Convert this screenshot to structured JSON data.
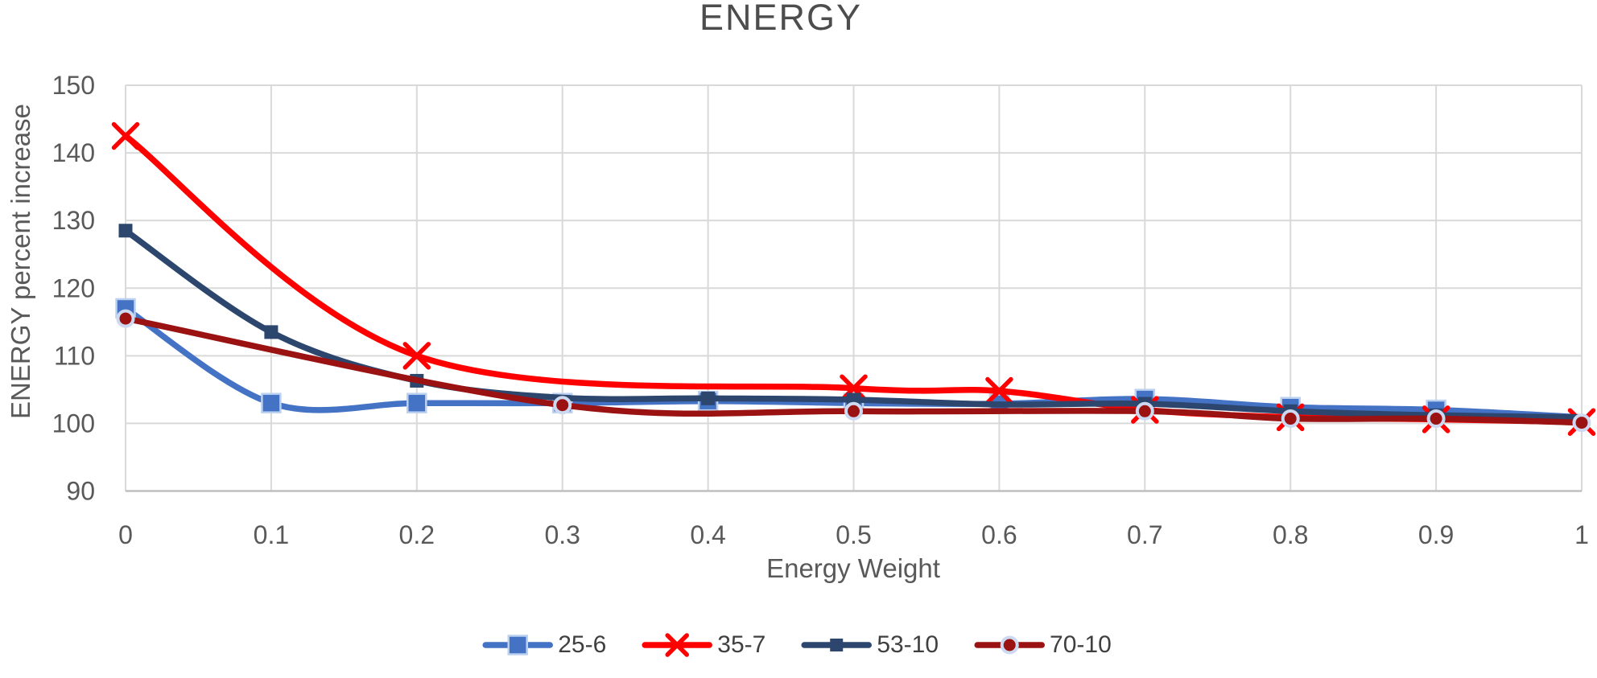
{
  "chart_data": {
    "type": "line",
    "title": "ENERGY",
    "xlabel": "Energy Weight",
    "ylabel": "ENERGY percent increase",
    "xlim": [
      0,
      1
    ],
    "ylim": [
      90,
      150
    ],
    "grid": true,
    "legend_position": "bottom-center",
    "x_ticks": [
      "0",
      "0.1",
      "0.2",
      "0.3",
      "0.4",
      "0.5",
      "0.6",
      "0.7",
      "0.8",
      "0.9",
      "1"
    ],
    "x_tick_values": [
      0,
      0.1,
      0.2,
      0.3,
      0.4,
      0.5,
      0.6,
      0.7,
      0.8,
      0.9,
      1
    ],
    "y_ticks": [
      "90",
      "100",
      "110",
      "120",
      "130",
      "140",
      "150"
    ],
    "y_tick_values": [
      90,
      100,
      110,
      120,
      130,
      140,
      150
    ],
    "colors": {
      "grid": "#D9D9D9",
      "axis": "#BFBFBF",
      "tick_text": "#595959",
      "title_text": "#4D4D4D",
      "legend_text": "#3F3F3F",
      "background": "#FFFFFF"
    },
    "series": [
      {
        "name": "25-6",
        "color": "#4472C4",
        "marker": "square",
        "marker_size": 23,
        "marker_border": "#BCD1F0",
        "line_width": 7.5,
        "smooth": true,
        "x": [
          0,
          0.1,
          0.2,
          0.3,
          0.4,
          0.5,
          0.6,
          0.7,
          0.8,
          0.9,
          1
        ],
        "y": [
          117,
          103,
          103,
          103,
          103.3,
          103,
          102.9,
          103.6,
          102.4,
          102,
          100.9
        ],
        "markers_at": [
          0,
          0.1,
          0.2,
          0.3,
          0.4,
          0.5,
          0.6,
          0.7,
          0.8,
          0.9
        ]
      },
      {
        "name": "35-7",
        "color": "#FE0000",
        "marker": "x",
        "marker_size": 29,
        "line_width": 7.5,
        "smooth": true,
        "x": [
          0,
          0.2,
          0.5,
          0.6,
          0.7,
          0.8,
          0.9,
          1
        ],
        "y": [
          142.5,
          110,
          105.2,
          104.8,
          102,
          100.9,
          100.6,
          100.2
        ],
        "markers_at": [
          0,
          0.2,
          0.5,
          0.6,
          0.7,
          0.8,
          0.9,
          1
        ]
      },
      {
        "name": "53-10",
        "color": "#2C466E",
        "marker": "square",
        "marker_size": 17,
        "line_width": 7.5,
        "smooth": true,
        "x": [
          0,
          0.1,
          0.2,
          0.3,
          0.4,
          0.5,
          0.6,
          0.7,
          0.8,
          0.9,
          1
        ],
        "y": [
          128.5,
          113.5,
          106.3,
          103.8,
          103.7,
          103.5,
          102.8,
          102.9,
          101.8,
          101.2,
          100.9
        ],
        "markers_at": [
          0,
          0.1,
          0.2,
          0.4,
          0.5,
          0.7,
          0.8,
          0.9
        ]
      },
      {
        "name": "70-10",
        "color": "#9A1212",
        "marker": "circle",
        "marker_size": 19,
        "marker_border": "#CDD9F0",
        "line_width": 7.5,
        "smooth": true,
        "x": [
          0,
          0.3,
          0.5,
          0.7,
          0.8,
          0.9,
          1
        ],
        "y": [
          115.5,
          102.7,
          101.8,
          101.8,
          100.7,
          100.7,
          100.1
        ],
        "markers_at": [
          0,
          0.3,
          0.5,
          0.7,
          0.8,
          0.9,
          1
        ]
      }
    ]
  }
}
